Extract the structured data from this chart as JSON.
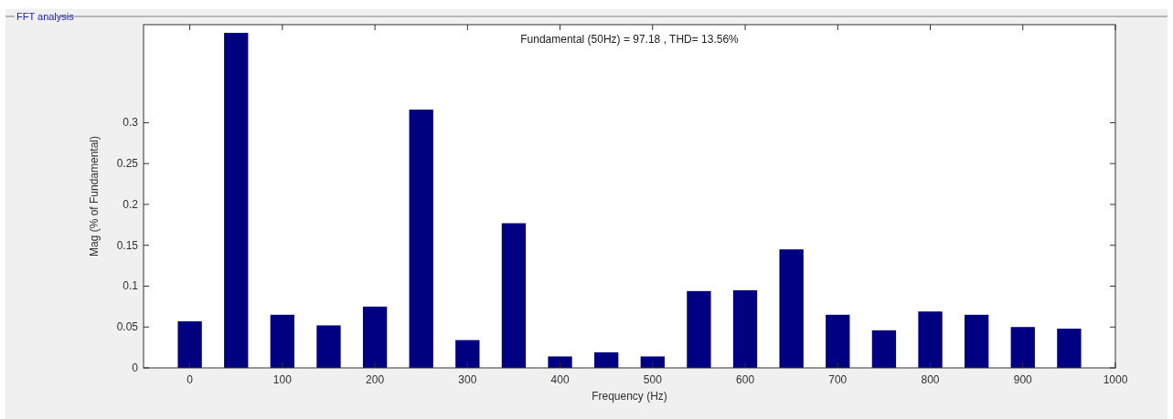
{
  "chart_data": {
    "type": "bar",
    "title": "FFT analysis",
    "subtitle": "Fundamental (50Hz) = 97.18 , THD= 13.56%",
    "xlabel": "Frequency (Hz)",
    "ylabel": "Mag (% of Fundamental)",
    "x": [
      0,
      50,
      100,
      150,
      200,
      250,
      300,
      350,
      400,
      450,
      500,
      550,
      600,
      650,
      700,
      750,
      800,
      850,
      900,
      950
    ],
    "values": [
      0.057,
      0.41,
      0.065,
      0.052,
      0.075,
      0.316,
      0.034,
      0.177,
      0.014,
      0.019,
      0.014,
      0.094,
      0.095,
      0.145,
      0.065,
      0.046,
      0.069,
      0.065,
      0.05,
      0.048
    ],
    "color": "#000080",
    "xlim": [
      -50,
      1000
    ],
    "xticks": [
      0,
      100,
      200,
      300,
      400,
      500,
      600,
      700,
      800,
      900,
      1000
    ],
    "ylim": [
      0,
      0.42
    ],
    "yticks": [
      0,
      0.05,
      0.1,
      0.15,
      0.2,
      0.25,
      0.3
    ],
    "grid": false
  }
}
